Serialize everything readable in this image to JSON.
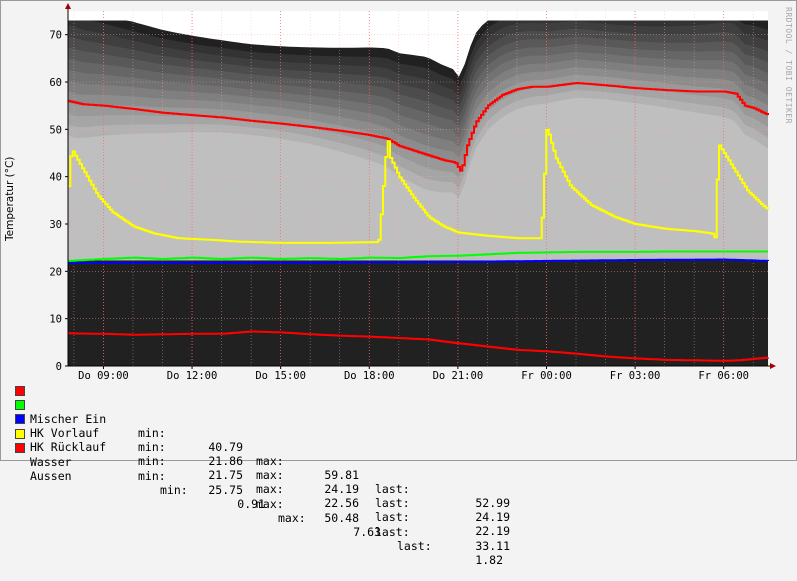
{
  "watermark": "RRDTOOL / TOBI OETIKER",
  "chart_data": {
    "type": "line",
    "ylabel": "Temperatur (°C)",
    "xlabel": "",
    "title": "",
    "ylim": [
      0,
      75
    ],
    "yticks": [
      0,
      10,
      20,
      30,
      40,
      50,
      60,
      70
    ],
    "xlim": [
      7.8,
      31.5
    ],
    "xticks": [
      {
        "x": 9,
        "label": "Do 09:00"
      },
      {
        "x": 12,
        "label": "Do 12:00"
      },
      {
        "x": 15,
        "label": "Do 15:00"
      },
      {
        "x": 18,
        "label": "Do 18:00"
      },
      {
        "x": 21,
        "label": "Do 21:00"
      },
      {
        "x": 24,
        "label": "Fr 00:00"
      },
      {
        "x": 27,
        "label": "Fr 03:00"
      },
      {
        "x": 30,
        "label": "Fr 06:00"
      }
    ],
    "grid": true,
    "series": [
      {
        "name": "Mischer Ein",
        "color": "#ff0000",
        "x": [
          7.8,
          8.3,
          9,
          10,
          11,
          12,
          13,
          14,
          15,
          16,
          17,
          18,
          18.6,
          19,
          19.5,
          20,
          20.5,
          20.9,
          21.1,
          21.3,
          21.6,
          22,
          22.5,
          23,
          23.5,
          24,
          25,
          26,
          27,
          28,
          29,
          30,
          30.4,
          30.7,
          31,
          31.5
        ],
        "values": [
          56,
          55.3,
          55,
          54.3,
          53.5,
          53,
          52.5,
          51.8,
          51.2,
          50.5,
          49.7,
          48.8,
          48,
          46.5,
          45.5,
          44.5,
          43.5,
          43,
          41,
          46.5,
          51.5,
          55,
          57.3,
          58.5,
          59,
          59,
          59.8,
          59.3,
          58.7,
          58.3,
          58,
          58,
          57.5,
          55,
          54.5,
          53
        ]
      },
      {
        "name": "HK Vorlauf",
        "color": "#00ff00",
        "x": [
          7.8,
          9,
          10,
          11,
          12,
          13,
          14,
          15,
          16,
          17,
          18,
          19,
          20,
          21,
          22,
          23,
          24,
          25,
          26,
          27,
          28,
          29,
          30,
          31.5
        ],
        "values": [
          22.2,
          22.6,
          22.9,
          22.6,
          22.9,
          22.6,
          22.9,
          22.6,
          22.8,
          22.6,
          22.9,
          22.8,
          23.2,
          23.3,
          23.6,
          23.9,
          24,
          24.1,
          24.1,
          24.1,
          24.2,
          24.2,
          24.2,
          24.19
        ]
      },
      {
        "name": "HK Rücklauf",
        "color": "#0000ff",
        "x": [
          7.8,
          9,
          12,
          15,
          18,
          21,
          24,
          27,
          30,
          31.5
        ],
        "values": [
          21.8,
          21.8,
          21.8,
          21.8,
          21.9,
          22,
          22.2,
          22.4,
          22.5,
          22.19
        ]
      },
      {
        "name": "Wasser",
        "color": "#ffff00",
        "x": [
          7.8,
          7.9,
          8.3,
          8.8,
          9.3,
          10,
          10.7,
          11.5,
          12.5,
          13.5,
          15,
          16.5,
          17.5,
          18.3,
          18.4,
          18.6,
          18.7,
          19,
          19.5,
          20,
          20.5,
          21,
          22,
          23,
          23.5,
          23.8,
          24,
          24.3,
          24.8,
          25.5,
          26.3,
          27,
          28,
          29,
          29.6,
          29.7,
          29.8,
          30.3,
          30.8,
          31.3,
          31.5
        ],
        "values": [
          38,
          46,
          41.5,
          36,
          32.5,
          29.5,
          28,
          27,
          26.7,
          26.3,
          26,
          26,
          26.1,
          26.2,
          33,
          48.5,
          44,
          40,
          35.5,
          31.5,
          29.5,
          28.2,
          27.5,
          27,
          27,
          27,
          50.5,
          44,
          38,
          34,
          31.5,
          30,
          29,
          28.5,
          28,
          27,
          47,
          42,
          37,
          34,
          33
        ]
      },
      {
        "name": "Aussen",
        "color": "#ff0000",
        "x": [
          7.8,
          9,
          10,
          11,
          12,
          13,
          14,
          15,
          16,
          17,
          18,
          19,
          20,
          21,
          22,
          23,
          24,
          25,
          26,
          27,
          28,
          29,
          30,
          30.5,
          31,
          31.5
        ],
        "values": [
          6.9,
          6.8,
          6.6,
          6.7,
          6.8,
          6.8,
          7.3,
          7.1,
          6.7,
          6.4,
          6.2,
          5.9,
          5.6,
          4.8,
          4.1,
          3.4,
          3.1,
          2.6,
          2.0,
          1.6,
          1.3,
          1.2,
          1.1,
          1.2,
          1.5,
          1.8
        ]
      }
    ]
  },
  "legend": [
    {
      "name": "Mischer Ein",
      "color": "#ff0000",
      "min": "40.79",
      "max": "59.81",
      "last": "52.99"
    },
    {
      "name": "HK Vorlauf",
      "color": "#00ff00",
      "min": "21.86",
      "max": "24.19",
      "last": "24.19"
    },
    {
      "name": "HK Rücklauf",
      "color": "#0000ff",
      "min": "21.75",
      "max": "22.56",
      "last": "22.19"
    },
    {
      "name": "Wasser",
      "color": "#ffff00",
      "min": "25.75",
      "max": "50.48",
      "last": "33.11"
    },
    {
      "name": "Aussen",
      "color": "#ff0000",
      "min": "0.91",
      "max": "7.63",
      "last": "1.82"
    }
  ],
  "legend_keys": {
    "min": "min:",
    "max": "max:",
    "last": "last:"
  }
}
